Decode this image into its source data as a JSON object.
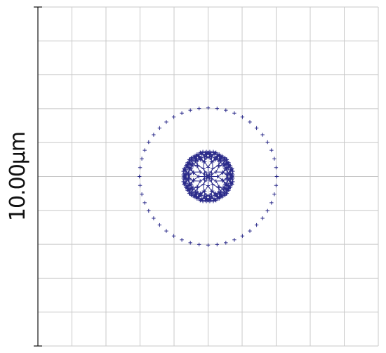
{
  "scale_bar": {
    "label": "10.00µm"
  },
  "grid": {
    "columns": 10,
    "rows": 10,
    "visible": true
  },
  "colors": {
    "background": "#ffffff",
    "grid": "#c8c8c8",
    "scale_bar": "#111111",
    "pattern": "#2b2b8a"
  },
  "pattern": {
    "type": "radial-cross-fractal",
    "branches": 12,
    "radius_units": 0.48
  }
}
